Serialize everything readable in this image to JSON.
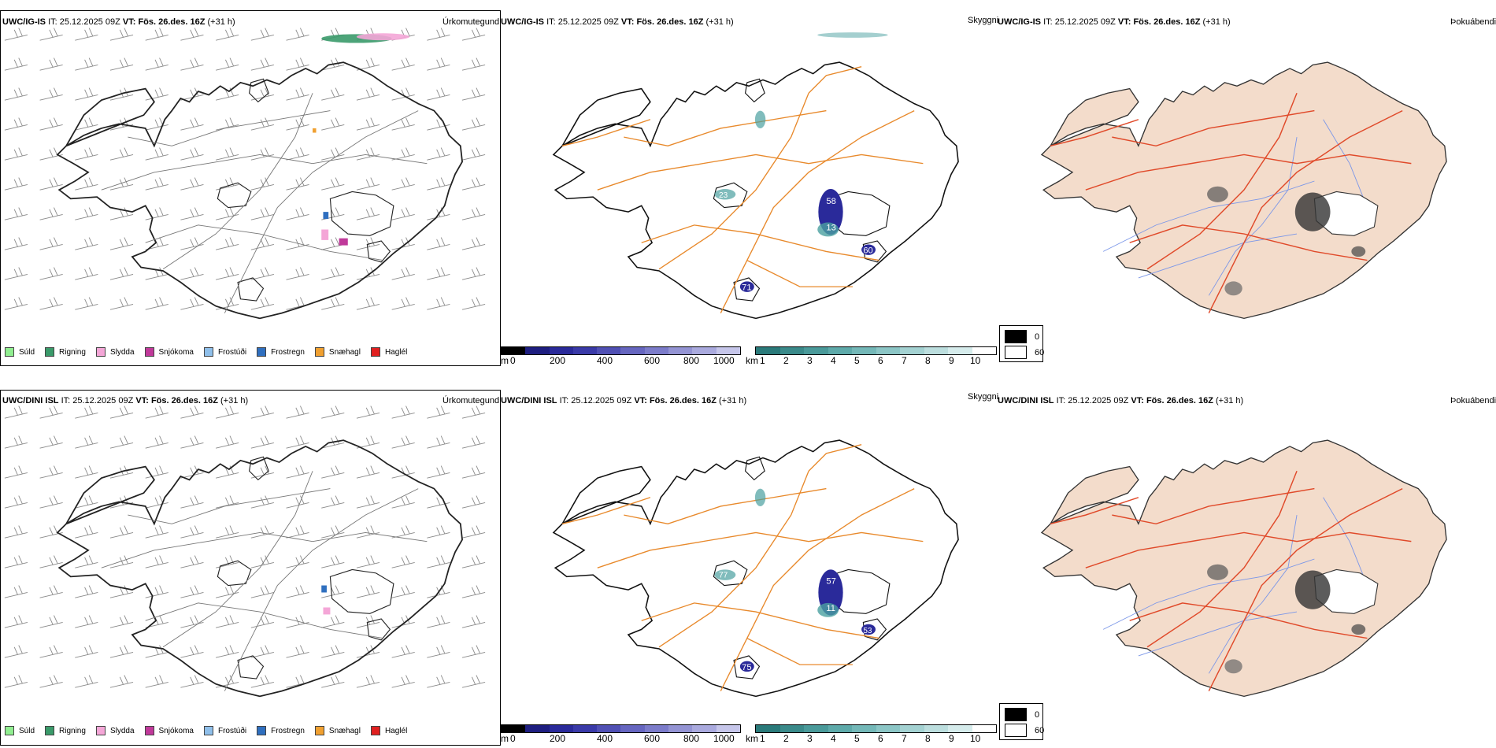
{
  "rows": [
    {
      "model": "UWC/IG-IS",
      "it_label": "IT:",
      "it_value": "25.12.2025 09Z",
      "vt_label": "VT:",
      "vt_value": "Fös. 26.des. 16Z",
      "lead": "(+31 h)",
      "precip_title": "Úrkomutegund",
      "vis_title": "Skyggni",
      "cloud_title": "Þokuábendi",
      "vis_labels": [
        "58",
        "13",
        "60",
        "71",
        "23"
      ]
    },
    {
      "model": "UWC/DINI ISL",
      "it_label": "IT:",
      "it_value": "25.12.2025 09Z",
      "vt_label": "VT:",
      "vt_value": "Fös. 26.des. 16Z",
      "lead": "(+31 h)",
      "precip_title": "Úrkomutegund",
      "vis_title": "Skyggni",
      "cloud_title": "Þokuábendi",
      "vis_labels": [
        "57",
        "11",
        "75",
        "77",
        "53"
      ]
    }
  ],
  "precip_legend": [
    {
      "label": "Súld",
      "color": "#90ee90"
    },
    {
      "label": "Rigning",
      "color": "#3a9a6a"
    },
    {
      "label": "Slydda",
      "color": "#f4a6d7"
    },
    {
      "label": "Snjókoma",
      "color": "#c0399a"
    },
    {
      "label": "Frostúði",
      "color": "#8fbfea"
    },
    {
      "label": "Frostregn",
      "color": "#2f6fbf"
    },
    {
      "label": "Snæhagl",
      "color": "#f0a030"
    },
    {
      "label": "Haglél",
      "color": "#e02020"
    }
  ],
  "vis_m_scale": {
    "unit": "m",
    "ticks": [
      "0",
      "200",
      "400",
      "600",
      "800",
      "1000"
    ]
  },
  "vis_km_scale": {
    "unit": "km",
    "ticks": [
      "1",
      "2",
      "3",
      "4",
      "5",
      "6",
      "7",
      "8",
      "9",
      "10"
    ]
  },
  "cloud_legend": [
    {
      "label": "0",
      "color": "#000000"
    },
    {
      "label": "60",
      "color": "#ffffff"
    }
  ],
  "colors": {
    "land_cloud": "#f3dccb",
    "roads_orange": "#e8892b",
    "roads_red": "#e04a2a",
    "rivers": "#7a96e8",
    "vis_dark": "#2a2a9a",
    "vis_teal": "#4aa0a0"
  }
}
